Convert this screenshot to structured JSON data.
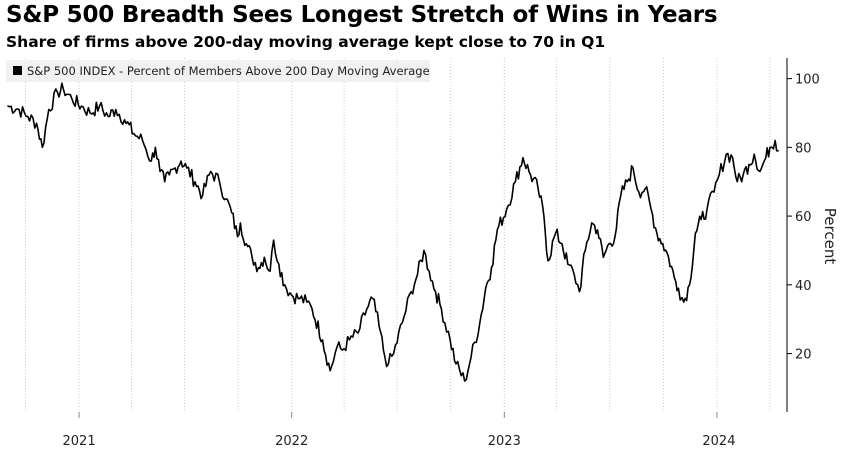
{
  "chart_data": {
    "type": "line",
    "title": "S&P 500 Breadth Sees Longest Stretch of Wins in Years",
    "subtitle": "Share of firms above 200-day moving average kept close to 70 in Q1",
    "legend": "S&P 500 INDEX - Percent of Members Above 200 Day Moving Average",
    "legend_placement": "top-left",
    "ylabel": "Percent",
    "ylim": [
      3,
      106
    ],
    "yticks": [
      "20",
      "40",
      "60",
      "80",
      "100"
    ],
    "xticks": [
      "2021",
      "2022",
      "2023",
      "2024"
    ],
    "xlim": [
      "2020-09-01",
      "2024-04-20"
    ],
    "grid": "vertical dotted",
    "line_color": "#000000",
    "series": [
      {
        "x": [
          "2020-09-01",
          "2020-09-20",
          "2020-10-05",
          "2020-10-20",
          "2020-10-30",
          "2020-11-10",
          "2020-11-25",
          "2020-12-05",
          "2020-12-20",
          "2021-01-05",
          "2021-01-20",
          "2021-02-05",
          "2021-02-20",
          "2021-03-05",
          "2021-03-20",
          "2021-04-05",
          "2021-04-20",
          "2021-05-05",
          "2021-05-12",
          "2021-05-20",
          "2021-05-28",
          "2021-06-05",
          "2021-06-15",
          "2021-06-25",
          "2021-07-05",
          "2021-07-19",
          "2021-08-01",
          "2021-08-15",
          "2021-08-30",
          "2021-09-10",
          "2021-09-20",
          "2021-09-30",
          "2021-10-05",
          "2021-10-15",
          "2021-10-25",
          "2021-11-05",
          "2021-11-15",
          "2021-11-25",
          "2021-12-01",
          "2021-12-10",
          "2021-12-20",
          "2022-01-01",
          "2022-01-15",
          "2022-01-27",
          "2022-02-05",
          "2022-02-23",
          "2022-03-08",
          "2022-03-20",
          "2022-03-29",
          "2022-04-10",
          "2022-04-25",
          "2022-05-10",
          "2022-05-20",
          "2022-05-31",
          "2022-06-10",
          "2022-06-16",
          "2022-06-25",
          "2022-07-10",
          "2022-07-25",
          "2022-08-05",
          "2022-08-16",
          "2022-08-25",
          "2022-09-05",
          "2022-09-15",
          "2022-09-30",
          "2022-10-10",
          "2022-10-25",
          "2022-11-05",
          "2022-11-20",
          "2022-11-30",
          "2022-12-10",
          "2022-12-20",
          "2023-01-05",
          "2023-01-20",
          "2023-02-02",
          "2023-02-15",
          "2023-02-28",
          "2023-03-10",
          "2023-03-17",
          "2023-03-30",
          "2023-04-10",
          "2023-04-20",
          "2023-05-01",
          "2023-05-10",
          "2023-05-20",
          "2023-05-31",
          "2023-06-10",
          "2023-06-20",
          "2023-06-30",
          "2023-07-10",
          "2023-07-20",
          "2023-07-31",
          "2023-08-10",
          "2023-08-20",
          "2023-08-31",
          "2023-09-10",
          "2023-09-20",
          "2023-09-30",
          "2023-10-10",
          "2023-10-20",
          "2023-10-27",
          "2023-11-05",
          "2023-11-15",
          "2023-11-25",
          "2023-12-05",
          "2023-12-15",
          "2023-12-27",
          "2024-01-05",
          "2024-01-17",
          "2024-01-28",
          "2024-02-05",
          "2024-02-15",
          "2024-02-25",
          "2024-03-05",
          "2024-03-15",
          "2024-03-25",
          "2024-04-01",
          "2024-04-10",
          "2024-04-15"
        ],
        "values": [
          92,
          91,
          89,
          87,
          80,
          91,
          96,
          97,
          94,
          92,
          90,
          92,
          89,
          91,
          88,
          84,
          82,
          76,
          80,
          73,
          70,
          72,
          74,
          76,
          74,
          70,
          66,
          73,
          70,
          65,
          61,
          54,
          58,
          52,
          48,
          45,
          48,
          44,
          53,
          46,
          40,
          37,
          36,
          35,
          33,
          24,
          15,
          22,
          21,
          24,
          26,
          33,
          36,
          28,
          19,
          17,
          20,
          29,
          38,
          43,
          50,
          44,
          38,
          33,
          24,
          17,
          12,
          19,
          29,
          39,
          45,
          56,
          62,
          70,
          77,
          72,
          68,
          60,
          47,
          55,
          52,
          46,
          43,
          38,
          50,
          58,
          56,
          48,
          52,
          54,
          66,
          70,
          74,
          67,
          68,
          62,
          55,
          52,
          48,
          42,
          39,
          35,
          40,
          55,
          59,
          62,
          67,
          72,
          78,
          77,
          70,
          72,
          75,
          78,
          73,
          77,
          80,
          82,
          79
        ]
      }
    ]
  }
}
